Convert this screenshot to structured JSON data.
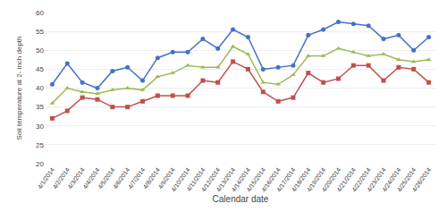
{
  "chart_data": {
    "type": "line",
    "xlabel": "Calendar date",
    "ylabel": "Soil temperature at 2- inch depth",
    "categories": [
      "4/1/2014",
      "4/2/2014",
      "4/3/2014",
      "4/4/2014",
      "4/5/2014",
      "4/6/2014",
      "4/7/2014",
      "4/8/2014",
      "4/9/2014",
      "4/10/2014",
      "4/11/2014",
      "4/12/2014",
      "4/13/2014",
      "4/14/2014",
      "4/15/2014",
      "4/16/2014",
      "4/17/2014",
      "4/18/2014",
      "4/19/2014",
      "4/20/2014",
      "4/21/2014",
      "4/22/2014",
      "4/23/2014",
      "4/24/2014",
      "4/25/2014",
      "4/26/2014"
    ],
    "series": [
      {
        "color": "#4472C4",
        "marker": "circle",
        "values": [
          41,
          46.5,
          41.5,
          40,
          44.5,
          45.5,
          42,
          48,
          49.5,
          49.5,
          53,
          50.5,
          55.5,
          53.5,
          45,
          45.5,
          46,
          54,
          55.5,
          57.5,
          57,
          56.5,
          53,
          54,
          50,
          53.5
        ]
      },
      {
        "color": "#9BBB59",
        "marker": "triangle",
        "values": [
          36,
          40,
          39,
          38.5,
          39.5,
          40,
          39.5,
          43,
          44,
          46,
          45.5,
          45.5,
          51,
          49,
          41.5,
          41,
          43.5,
          48.5,
          48.5,
          50.5,
          49.5,
          48.5,
          49,
          47.5,
          47,
          47.5
        ]
      },
      {
        "color": "#C0504D",
        "marker": "square",
        "values": [
          32,
          34,
          37.5,
          37,
          35,
          35,
          36.5,
          38,
          38,
          38,
          42,
          41.5,
          47,
          45,
          39,
          36.5,
          37.5,
          44,
          41.5,
          42.5,
          46,
          46,
          42,
          45.5,
          45,
          41.5
        ]
      }
    ],
    "ylim": [
      20,
      60
    ],
    "yticks": [
      20,
      25,
      30,
      35,
      40,
      45,
      50,
      55,
      60
    ],
    "grid": true
  }
}
